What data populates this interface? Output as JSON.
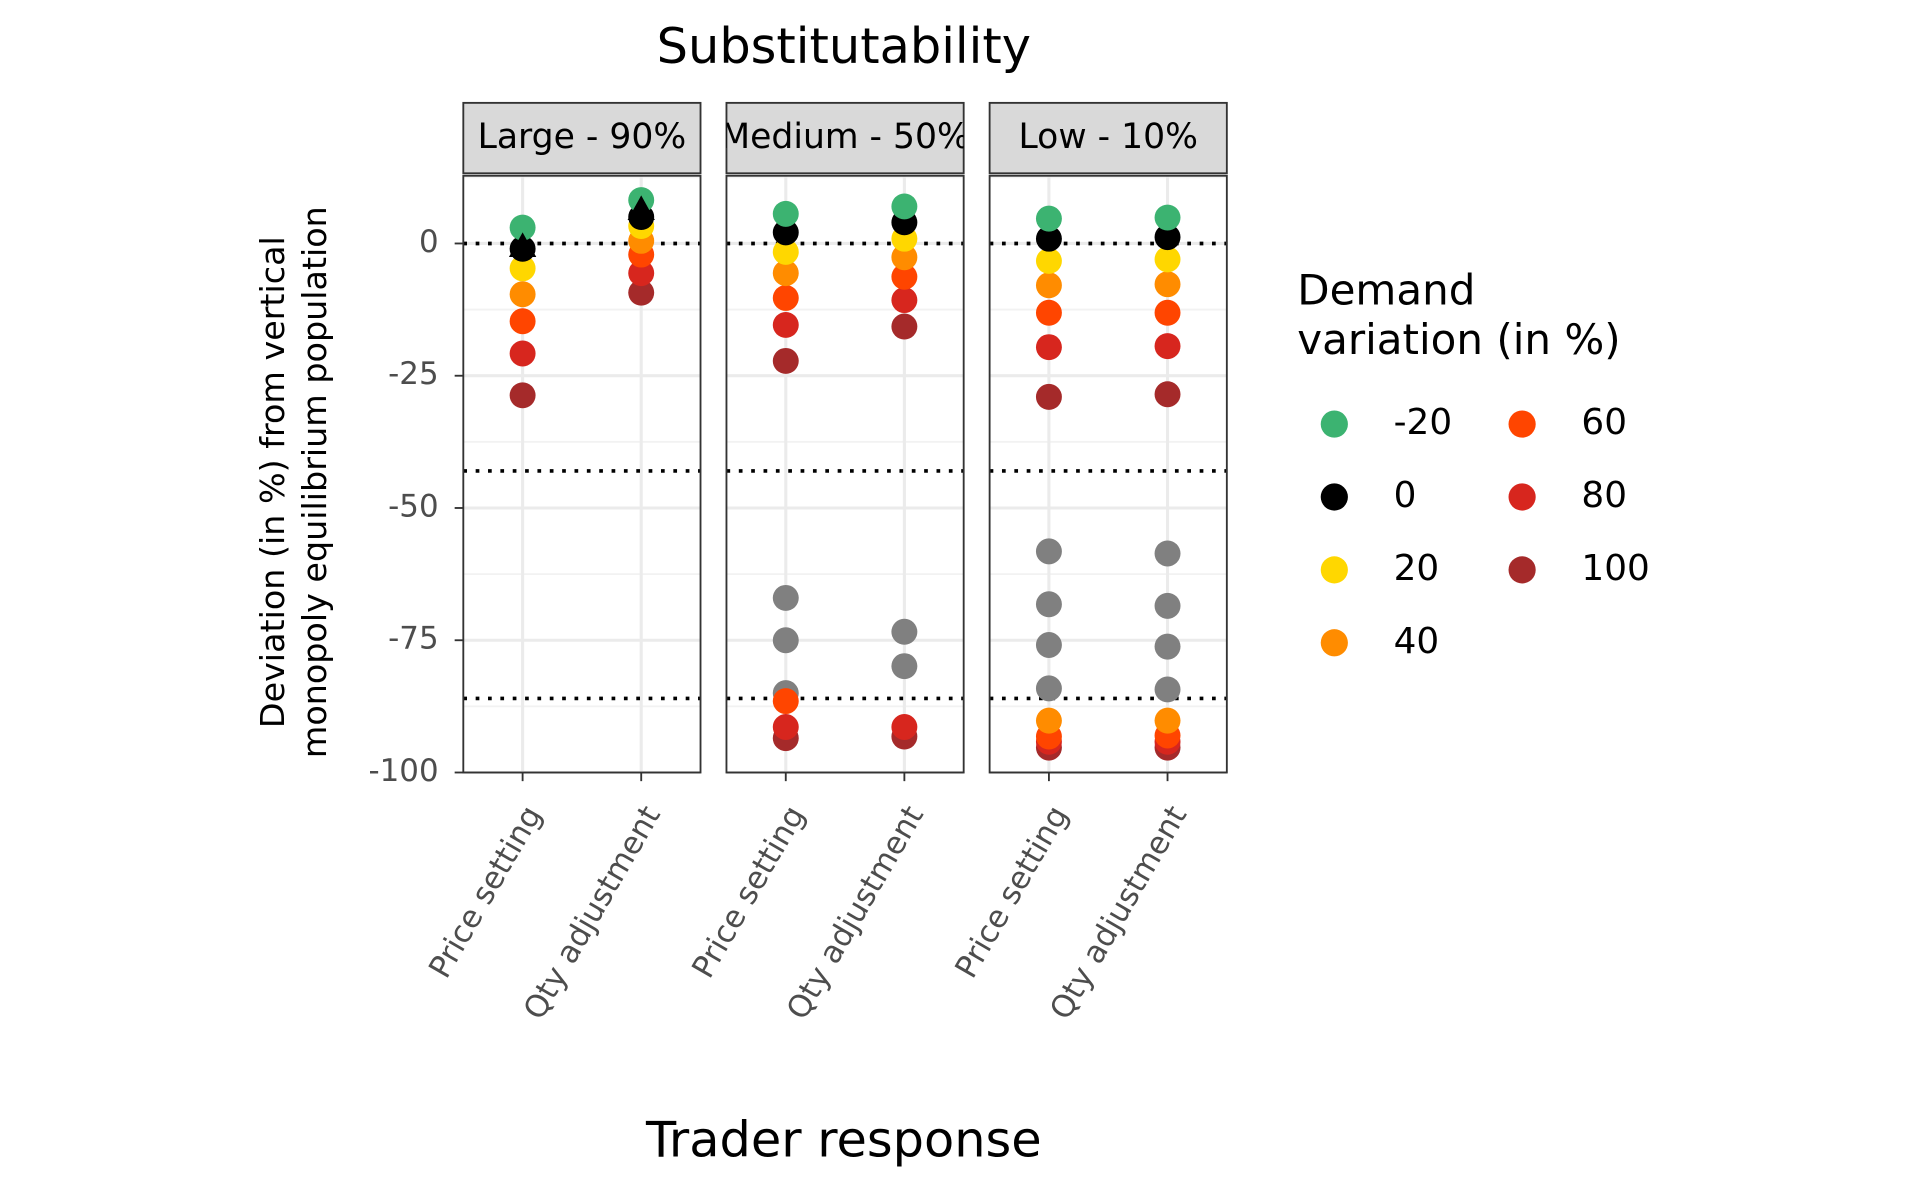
{
  "chart_data": {
    "type": "dot",
    "title": "Substitutability",
    "xlabel": "Trader response",
    "ylabel": [
      "Deviation (in %) from vertical",
      "monopoly equilibrium population"
    ],
    "legend_title": [
      "Demand",
      "variation (in %)"
    ],
    "categories": [
      "Price setting",
      "Qty adjustment"
    ],
    "ylim": [
      -100,
      12.8
    ],
    "yticks": [
      -100,
      -75,
      -50,
      -25,
      0
    ],
    "hlines": [
      0,
      -43,
      -86
    ],
    "grid": true,
    "series": [
      {
        "name": "-20",
        "color": "#3cb371"
      },
      {
        "name": "0",
        "color": "#000000"
      },
      {
        "name": "20",
        "color": "#ffd700"
      },
      {
        "name": "40",
        "color": "#ff8c00"
      },
      {
        "name": "60",
        "color": "#ff4500"
      },
      {
        "name": "80",
        "color": "#d7261e"
      },
      {
        "name": "100",
        "color": "#a52a2a"
      }
    ],
    "panels": [
      {
        "title": "Large - 90%",
        "values": [
          [
            [
              3.0
            ],
            [
              8.2
            ]
          ],
          [
            [
              -1.0
            ],
            [
              5.0
            ]
          ],
          [
            [
              -4.7
            ],
            [
              3.3
            ]
          ],
          [
            [
              -9.6
            ],
            [
              0.5
            ]
          ],
          [
            [
              -14.7
            ],
            [
              -2.1
            ]
          ],
          [
            [
              -20.8
            ],
            [
              -5.6
            ]
          ],
          [
            [
              -28.7
            ],
            [
              -9.3
            ]
          ]
        ],
        "extra": [
          {
            "marker": "triangle",
            "color": "#000000",
            "values": [
              [
                -0.7
              ],
              [
                6.3
              ]
            ]
          }
        ]
      },
      {
        "title": "Medium - 50%",
        "values": [
          [
            [
              5.6
            ],
            [
              7.0
            ]
          ],
          [
            [
              2.1
            ],
            [
              4.0
            ]
          ],
          [
            [
              -1.6
            ],
            [
              0.9
            ]
          ],
          [
            [
              -5.6
            ],
            [
              -2.6
            ]
          ],
          [
            [
              -10.3,
              -86.5
            ],
            [
              -6.3
            ]
          ],
          [
            [
              -15.4,
              -91.4
            ],
            [
              -10.7,
              -91.4
            ]
          ],
          [
            [
              -22.2,
              -93.5
            ],
            [
              -15.7,
              -93.2
            ]
          ]
        ],
        "extra": [
          {
            "marker": "circle",
            "color": "#808080",
            "values": [
              [
                -67.0,
                -75.0,
                -85.0
              ],
              [
                -73.4,
                -79.9
              ]
            ]
          }
        ]
      },
      {
        "title": "Low - 10%",
        "values": [
          [
            [
              4.7
            ],
            [
              4.9
            ]
          ],
          [
            [
              0.9
            ],
            [
              1.2
            ]
          ],
          [
            [
              -3.3
            ],
            [
              -3.0
            ]
          ],
          [
            [
              -7.9,
              -90.2
            ],
            [
              -7.7,
              -90.2
            ]
          ],
          [
            [
              -13.1,
              -93.2
            ],
            [
              -13.1,
              -93.0
            ]
          ],
          [
            [
              -19.6,
              -94.2
            ],
            [
              -19.4,
              -94.2
            ]
          ],
          [
            [
              -29.0,
              -95.3
            ],
            [
              -28.5,
              -95.3
            ]
          ]
        ],
        "extra": [
          {
            "marker": "circle",
            "color": "#808080",
            "values": [
              [
                -58.2,
                -68.2,
                -75.9,
                -84.1
              ],
              [
                -58.6,
                -68.5,
                -76.2,
                -84.3
              ]
            ]
          }
        ]
      }
    ]
  }
}
